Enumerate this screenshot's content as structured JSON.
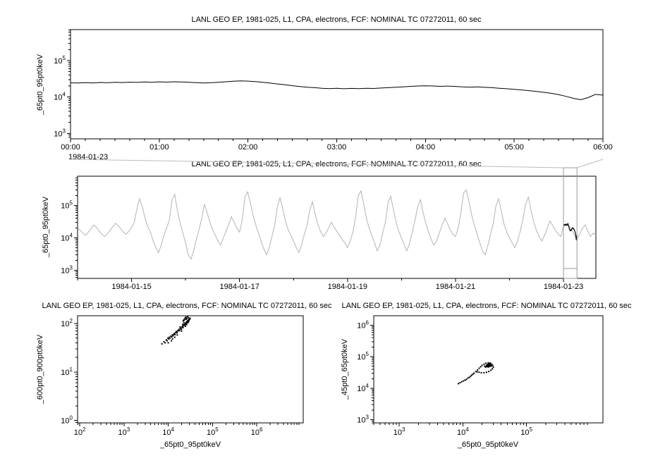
{
  "page": {
    "background": "#ffffff",
    "axis_color": "#000000",
    "context_series_color": "#b4b4b4",
    "overview_box_color": "#999999",
    "connector_color": "#bbbbbb"
  },
  "chart_data": [
    {
      "type": "line",
      "title": "LANL GEO EP, 1981-025, L1, CPA, electrons, FCF: NOMINAL TC 07272011, 60 sec",
      "ylabel": "_65pt0_95pt0keV",
      "xlabel": "",
      "x_axis": {
        "kind": "time",
        "unit": "hours on 1984-01-23",
        "min": 0,
        "max": 6,
        "minor_step": 0.16667,
        "context_label": "1984-01-23",
        "ticks": [
          {
            "v": 0,
            "label": "00:00"
          },
          {
            "v": 1,
            "label": "01:00"
          },
          {
            "v": 2,
            "label": "02:00"
          },
          {
            "v": 3,
            "label": "03:00"
          },
          {
            "v": 4,
            "label": "04:00"
          },
          {
            "v": 5,
            "label": "05:00"
          },
          {
            "v": 6,
            "label": "06:00"
          }
        ]
      },
      "y_axis": {
        "kind": "log",
        "log_min": 2.85,
        "log_max": 5.85,
        "tick_decades": [
          3,
          4,
          5
        ]
      },
      "series": [
        {
          "name": "_65pt0_95pt0keV",
          "color": "#000000",
          "x_start": 0,
          "x_step": 0.0833333,
          "values_scale": 1000,
          "values": [
            24.5,
            24.2,
            24.8,
            24.3,
            25.0,
            24.6,
            25.2,
            24.9,
            25.5,
            25.1,
            25.8,
            25.4,
            26.0,
            25.6,
            26.2,
            25.8,
            25.3,
            24.8,
            24.2,
            24.6,
            25.4,
            26.2,
            27.0,
            27.6,
            27.2,
            26.4,
            25.2,
            24.0,
            22.8,
            21.6,
            20.4,
            19.4,
            18.6,
            18.0,
            17.4,
            17.0,
            17.3,
            16.8,
            17.2,
            16.9,
            17.4,
            17.1,
            17.6,
            18.0,
            18.5,
            19.0,
            19.6,
            20.0,
            20.3,
            20.0,
            19.6,
            19.9,
            19.5,
            19.0,
            18.6,
            18.9,
            18.4,
            18.0,
            17.4,
            16.8,
            16.2,
            15.6,
            14.9,
            14.2,
            13.4,
            12.6,
            11.6,
            10.4,
            9.2,
            8.4,
            9.6,
            11.8,
            11.2
          ]
        }
      ]
    },
    {
      "type": "line",
      "title": "LANL GEO EP, 1981-025, L1, CPA, electrons, FCF: NOMINAL TC 07272011, 60 sec",
      "ylabel": "_65pt0_95pt0keV",
      "xlabel": "",
      "x_axis": {
        "kind": "time",
        "unit": "day of 1984-01",
        "min": 14.0,
        "max": 23.6,
        "minor_step": 1.0,
        "ticks": [
          {
            "v": 15,
            "label": "1984-01-15"
          },
          {
            "v": 17,
            "label": "1984-01-17"
          },
          {
            "v": 19,
            "label": "1984-01-19"
          },
          {
            "v": 21,
            "label": "1984-01-21"
          },
          {
            "v": 23,
            "label": "1984-01-23"
          }
        ]
      },
      "y_axis": {
        "kind": "log",
        "log_min": 2.75,
        "log_max": 5.9,
        "tick_decades": [
          3,
          4,
          5
        ]
      },
      "series": [
        {
          "name": "_65pt0_95pt0keV",
          "color": "#b4b4b4",
          "x_start": 14.0,
          "x_step": 0.05,
          "values_scale": 1000,
          "values": [
            20,
            17,
            14,
            12,
            15,
            19,
            25,
            21,
            16,
            13,
            11,
            13,
            17,
            22,
            28,
            24,
            19,
            15,
            13,
            16,
            21,
            30,
            80,
            160,
            90,
            40,
            22,
            15,
            8,
            5,
            3.5,
            6,
            12,
            20,
            35,
            150,
            220,
            70,
            28,
            14,
            7,
            3,
            2.2,
            4,
            9,
            18,
            40,
            110,
            60,
            30,
            18,
            12,
            8,
            6,
            10,
            16,
            26,
            45,
            30,
            20,
            15,
            35,
            180,
            260,
            120,
            50,
            25,
            14,
            8,
            4.5,
            3,
            5,
            11,
            24,
            90,
            170,
            80,
            32,
            18,
            12,
            8,
            5,
            3.5,
            6,
            13,
            25,
            70,
            130,
            55,
            26,
            16,
            11,
            14,
            20,
            30,
            22,
            16,
            12,
            9,
            7,
            5,
            8,
            15,
            45,
            200,
            280,
            110,
            40,
            20,
            12,
            7,
            4,
            6,
            14,
            30,
            120,
            190,
            75,
            30,
            16,
            10,
            6,
            4,
            7,
            15,
            35,
            90,
            150,
            60,
            28,
            15,
            9,
            6,
            8,
            14,
            24,
            40,
            28,
            18,
            13,
            11,
            20,
            60,
            240,
            300,
            130,
            50,
            24,
            13,
            7,
            4,
            3,
            6,
            13,
            28,
            100,
            160,
            65,
            26,
            15,
            10,
            7,
            5,
            8,
            16,
            38,
            110,
            180,
            70,
            30,
            17,
            11,
            8,
            12,
            20,
            33,
            24,
            17,
            13,
            11,
            24,
            25,
            23,
            18,
            12,
            9,
            13,
            19,
            25,
            16,
            11,
            14,
            12
          ]
        }
      ],
      "selection_box": {
        "start_day": 23.0,
        "end_day": 23.25
      },
      "highlight": {
        "start_day": 23.0,
        "end_day": 23.25,
        "color": "#000000",
        "source_chart": 0
      }
    },
    {
      "type": "scatter",
      "title": "LANL GEO EP, 1981-025, L1, CPA, electrons, FCF: NOMINAL TC 07272011, 60 sec",
      "ylabel": "_600pt0_900pt0keV",
      "xlabel": "_65pt0_95pt0keV",
      "x_axis": {
        "kind": "log",
        "log_min": 1.95,
        "log_max": 7.05,
        "tick_decades": [
          2,
          3,
          4,
          5,
          6
        ]
      },
      "y_axis": {
        "kind": "log",
        "log_min": -0.05,
        "log_max": 2.16,
        "tick_decades": [
          0,
          1,
          2
        ]
      },
      "marker_color": "#000000",
      "points_x_scale": 1000,
      "points_y_scale": 1,
      "points": [
        [
          7.2,
          38
        ],
        [
          8.0,
          42
        ],
        [
          8.5,
          40
        ],
        [
          9.0,
          46
        ],
        [
          9.4,
          44
        ],
        [
          9.8,
          50
        ],
        [
          10.2,
          48
        ],
        [
          10.6,
          52
        ],
        [
          11.0,
          50
        ],
        [
          11.5,
          55
        ],
        [
          12.0,
          53
        ],
        [
          12.4,
          58
        ],
        [
          12.8,
          56
        ],
        [
          13.3,
          60
        ],
        [
          13.8,
          62
        ],
        [
          14.2,
          59
        ],
        [
          14.7,
          65
        ],
        [
          15.2,
          68
        ],
        [
          15.8,
          64
        ],
        [
          16.3,
          70
        ],
        [
          16.9,
          72
        ],
        [
          17.4,
          75
        ],
        [
          18.0,
          71
        ],
        [
          18.6,
          78
        ],
        [
          19.2,
          80
        ],
        [
          19.8,
          76
        ],
        [
          20.4,
          84
        ],
        [
          21.0,
          88
        ],
        [
          21.6,
          82
        ],
        [
          22.2,
          90
        ],
        [
          22.8,
          95
        ],
        [
          23.4,
          92
        ],
        [
          24.0,
          100
        ],
        [
          24.6,
          97
        ],
        [
          25.2,
          105
        ],
        [
          25.8,
          102
        ],
        [
          26.4,
          110
        ],
        [
          27.0,
          108
        ],
        [
          27.6,
          115
        ],
        [
          28.2,
          112
        ],
        [
          28.8,
          120
        ],
        [
          29.4,
          118
        ],
        [
          30.0,
          125
        ],
        [
          30.6,
          122
        ],
        [
          31.2,
          128
        ],
        [
          26.0,
          95
        ],
        [
          24.5,
          88
        ],
        [
          22.5,
          105
        ],
        [
          20.0,
          70
        ],
        [
          18.5,
          85
        ],
        [
          16.0,
          58
        ],
        [
          14.0,
          52
        ],
        [
          12.5,
          48
        ],
        [
          11.8,
          44
        ],
        [
          10.0,
          40
        ],
        [
          23.0,
          118
        ],
        [
          25.5,
          122
        ],
        [
          27.8,
          104
        ],
        [
          29.0,
          110
        ],
        [
          21.2,
          96
        ],
        [
          24.2,
          130
        ],
        [
          25.0,
          135
        ],
        [
          26.2,
          128
        ],
        [
          27.2,
          140
        ],
        [
          28.5,
          132
        ],
        [
          23.8,
          126
        ],
        [
          22.6,
          120
        ],
        [
          21.8,
          114
        ]
      ]
    },
    {
      "type": "scatter",
      "title": "LANL GEO EP, 1981-025, L1, CPA, electrons, FCF: NOMINAL TC 07272011, 60 sec",
      "ylabel": "_45pt0_65pt0keV",
      "xlabel": "_65pt0_95pt0keV",
      "x_axis": {
        "kind": "log",
        "log_min": 2.6,
        "log_max": 6.2,
        "tick_decades": [
          3,
          4,
          5
        ]
      },
      "y_axis": {
        "kind": "log",
        "log_min": 2.9,
        "log_max": 6.3,
        "tick_decades": [
          3,
          4,
          5,
          6
        ]
      },
      "marker_color": "#000000",
      "points_x_scale": 1000,
      "points_y_scale": 1000,
      "points": [
        [
          8.5,
          14
        ],
        [
          9.0,
          15
        ],
        [
          9.6,
          16
        ],
        [
          10.2,
          17
        ],
        [
          10.8,
          18
        ],
        [
          11.4,
          19
        ],
        [
          12.0,
          21
        ],
        [
          12.6,
          22
        ],
        [
          13.2,
          24
        ],
        [
          13.8,
          26
        ],
        [
          14.4,
          28
        ],
        [
          15.0,
          30
        ],
        [
          16,
          34
        ],
        [
          17,
          38
        ],
        [
          18,
          43
        ],
        [
          19,
          48
        ],
        [
          20,
          53
        ],
        [
          21.5,
          58
        ],
        [
          23,
          62
        ],
        [
          25,
          64
        ],
        [
          27,
          63
        ],
        [
          28.5,
          58
        ],
        [
          29.5,
          52
        ],
        [
          30,
          46
        ],
        [
          29,
          41
        ],
        [
          27.5,
          37
        ],
        [
          25.5,
          34
        ],
        [
          23.5,
          32
        ],
        [
          21.5,
          31
        ],
        [
          19.5,
          31
        ],
        [
          18,
          32
        ],
        [
          16.8,
          33
        ],
        [
          24,
          55
        ],
        [
          25,
          57
        ],
        [
          26,
          58
        ],
        [
          26.5,
          55
        ],
        [
          25.5,
          52
        ],
        [
          24.5,
          50
        ],
        [
          23.5,
          52
        ],
        [
          24.8,
          54
        ],
        [
          26.2,
          52
        ],
        [
          27,
          55
        ],
        [
          23,
          48
        ],
        [
          22,
          50
        ],
        [
          25,
          47
        ],
        [
          26,
          49
        ],
        [
          27.5,
          50
        ],
        [
          28,
          53
        ],
        [
          24.3,
          56
        ],
        [
          25.7,
          54
        ],
        [
          26.8,
          57
        ],
        [
          24.9,
          51
        ],
        [
          23.8,
          49
        ],
        [
          22.8,
          47
        ],
        [
          25.2,
          59
        ],
        [
          26.4,
          61
        ]
      ]
    }
  ]
}
